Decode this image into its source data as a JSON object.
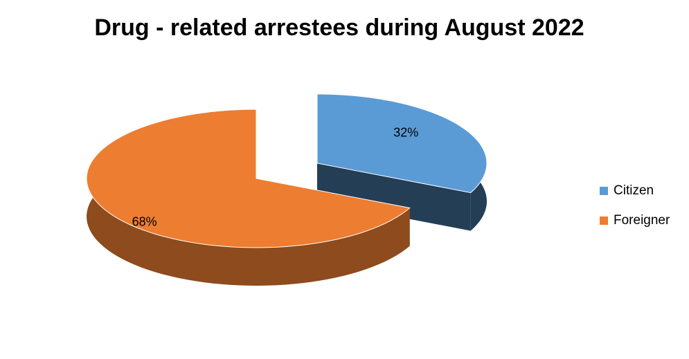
{
  "chart_data": {
    "type": "pie",
    "title": "Drug - related arrestees during August 2022",
    "categories": [
      "Citizen",
      "Foreigner"
    ],
    "values": [
      32,
      68
    ],
    "value_labels": [
      "32%",
      "68%"
    ],
    "colors": [
      "#5b9bd5",
      "#ed7d31"
    ],
    "legend": "right"
  }
}
